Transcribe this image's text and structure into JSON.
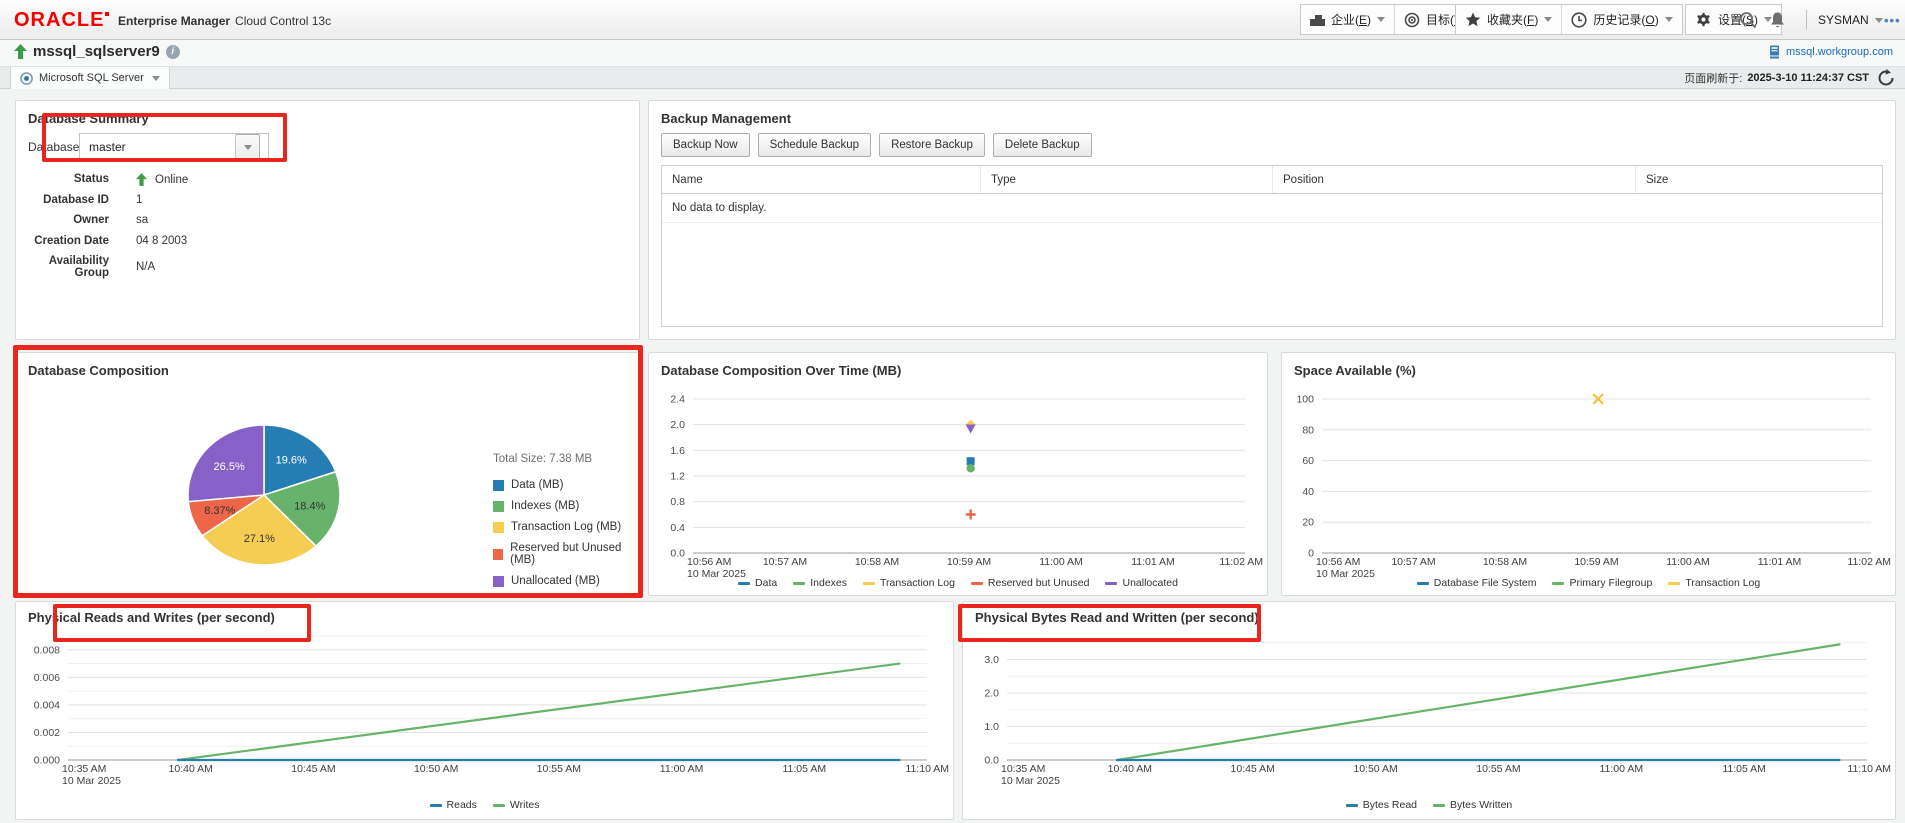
{
  "header": {
    "logo": "ORACLE",
    "product": "Enterprise Manager",
    "product_suffix": "Cloud Control 13c",
    "menus": [
      {
        "pre": "企业(",
        "accel": "E",
        "post": ")",
        "icon": "enterprise-icon"
      },
      {
        "pre": "目标(",
        "accel": "T",
        "post": ")",
        "icon": "target-icon"
      },
      {
        "pre": "收藏夹(",
        "accel": "F",
        "post": ")",
        "icon": "star-icon"
      },
      {
        "pre": "历史记录(",
        "accel": "O",
        "post": ")",
        "icon": "history-icon"
      },
      {
        "pre": "设置(",
        "accel": "S",
        "post": ")",
        "icon": "gear-icon"
      }
    ],
    "user": "SYSMAN",
    "overflow": "•••"
  },
  "target": {
    "name": "mssql_sqlserver9",
    "host": "mssql.workgroup.com",
    "type_tab": "Microsoft SQL Server",
    "refresh_label": "页面刷新于:",
    "refresh_time": "2025-3-10 11:24:37 CST"
  },
  "database_summary": {
    "title": "Database Summary",
    "field_label": "Database",
    "field_value": "master",
    "rows": [
      {
        "label": "Status",
        "value": "Online",
        "status_up": true
      },
      {
        "label": "Database ID",
        "value": "1"
      },
      {
        "label": "Owner",
        "value": "sa"
      },
      {
        "label": "Creation Date",
        "value": "04 8 2003"
      },
      {
        "label": "Availability Group",
        "value": "N/A"
      }
    ]
  },
  "backup": {
    "title": "Backup Management",
    "buttons": [
      "Backup Now",
      "Schedule Backup",
      "Restore Backup",
      "Delete Backup"
    ],
    "columns": [
      "Name",
      "Type",
      "Position",
      "Size"
    ],
    "empty_text": "No data to display."
  },
  "colors": {
    "blue": "#267db3",
    "green": "#68b36b",
    "yellow": "#f5cd53",
    "red": "#ed6647",
    "purple": "#8561c8",
    "marker_yellow": "#f0c33c",
    "annotation": "#e8261e"
  },
  "chart_data": [
    {
      "id": "composition_pie",
      "type": "pie",
      "title": "Database Composition",
      "total_label": "Total Size: 7.38 MB",
      "slices": [
        {
          "label": "Data (MB)",
          "pct": 19.6,
          "display": "19.6%",
          "color": "#267db3",
          "text": "#ffffff"
        },
        {
          "label": "Indexes (MB)",
          "pct": 18.4,
          "display": "18.4%",
          "color": "#68b36b",
          "text": "#333333"
        },
        {
          "label": "Transaction Log (MB)",
          "pct": 27.1,
          "display": "27.1%",
          "color": "#f5cd53",
          "text": "#333333"
        },
        {
          "label": "Reserved but Unused (MB)",
          "pct": 8.37,
          "display": "8.37%",
          "color": "#ed6647",
          "text": "#333333"
        },
        {
          "label": "Unallocated (MB)",
          "pct": 26.5,
          "display": "26.5%",
          "color": "#8561c8",
          "text": "#ffffff"
        }
      ]
    },
    {
      "id": "composition_time",
      "type": "scatter",
      "title": "Database Composition Over Time (MB)",
      "ymin": 0,
      "ymax": 2.4,
      "yticks": [
        {
          "v": 0,
          "label": "0.0"
        },
        {
          "v": 0.4,
          "label": "0.4"
        },
        {
          "v": 0.8,
          "label": "0.8"
        },
        {
          "v": 1.2,
          "label": "1.2"
        },
        {
          "v": 1.6,
          "label": "1.6"
        },
        {
          "v": 2.0,
          "label": "2.0"
        },
        {
          "v": 2.4,
          "label": "2.4"
        }
      ],
      "xlabels": [
        "10:56 AM",
        "10:57 AM",
        "10:58 AM",
        "10:59 AM",
        "11:00 AM",
        "11:01 AM",
        "11:02 AM"
      ],
      "xdate": "10 Mar 2025",
      "markers": [
        {
          "series": "Transaction Log",
          "shape": "diamond",
          "color": "#f5cd53",
          "x": 0.503,
          "y": 2.0
        },
        {
          "series": "Unallocated",
          "shape": "triangle-down",
          "color": "#8561c8",
          "x": 0.503,
          "y": 1.94
        },
        {
          "series": "Data",
          "shape": "square",
          "color": "#267db3",
          "x": 0.503,
          "y": 1.43
        },
        {
          "series": "Indexes",
          "shape": "circle",
          "color": "#68b36b",
          "x": 0.503,
          "y": 1.32
        },
        {
          "series": "Reserved but Unused",
          "shape": "plus",
          "color": "#ed6647",
          "x": 0.503,
          "y": 0.6
        }
      ],
      "legend": [
        {
          "label": "Data",
          "color": "#267db3"
        },
        {
          "label": "Indexes",
          "color": "#68b36b"
        },
        {
          "label": "Transaction Log",
          "color": "#f5cd53"
        },
        {
          "label": "Reserved but Unused",
          "color": "#ed6647"
        },
        {
          "label": "Unallocated",
          "color": "#8561c8"
        }
      ]
    },
    {
      "id": "space_available",
      "type": "scatter",
      "title": "Space Available (%)",
      "ymin": 0,
      "ymax": 100,
      "yticks": [
        {
          "v": 0,
          "label": "0"
        },
        {
          "v": 20,
          "label": "20"
        },
        {
          "v": 40,
          "label": "40"
        },
        {
          "v": 60,
          "label": "60"
        },
        {
          "v": 80,
          "label": "80"
        },
        {
          "v": 100,
          "label": "100"
        }
      ],
      "xlabels": [
        "10:56 AM",
        "10:57 AM",
        "10:58 AM",
        "10:59 AM",
        "11:00 AM",
        "11:01 AM",
        "11:02 AM"
      ],
      "xdate": "10 Mar 2025",
      "markers": [
        {
          "series": "Transaction Log",
          "shape": "x",
          "color": "#f0c33c",
          "x": 0.503,
          "y": 100
        }
      ],
      "legend": [
        {
          "label": "Database File System",
          "color": "#267db3"
        },
        {
          "label": "Primary Filegroup",
          "color": "#68b36b"
        },
        {
          "label": "Transaction Log",
          "color": "#f5cd53"
        }
      ]
    },
    {
      "id": "physical_rw",
      "type": "line",
      "title": "Physical Reads and Writes (per second)",
      "ymin": 0,
      "ymax": 0.009,
      "yminor": 0.001,
      "yticks": [
        {
          "v": 0,
          "label": "0.000"
        },
        {
          "v": 0.002,
          "label": "0.002"
        },
        {
          "v": 0.004,
          "label": "0.004"
        },
        {
          "v": 0.006,
          "label": "0.006"
        },
        {
          "v": 0.008,
          "label": "0.008"
        }
      ],
      "xlabels": [
        "10:35 AM",
        "10:40 AM",
        "10:45 AM",
        "10:50 AM",
        "10:55 AM",
        "11:00 AM",
        "11:05 AM",
        "11:10 AM"
      ],
      "xdate": "10 Mar 2025",
      "series": [
        {
          "name": "Writes",
          "color": "#68b36b",
          "points": [
            [
              0.128,
              0
            ],
            [
              0.968,
              0.007
            ]
          ]
        },
        {
          "name": "Reads",
          "color": "#267db3",
          "points": [
            [
              0.128,
              0
            ],
            [
              0.968,
              0
            ]
          ]
        }
      ],
      "legend": [
        {
          "label": "Reads",
          "color": "#267db3"
        },
        {
          "label": "Writes",
          "color": "#68b36b"
        }
      ]
    },
    {
      "id": "physical_bytes",
      "type": "line",
      "title": "Physical Bytes Read and Written (per second)",
      "ymin": 0,
      "ymax": 3.7,
      "yminor": 0.5,
      "yticks": [
        {
          "v": 0,
          "label": "0.0"
        },
        {
          "v": 1,
          "label": "1.0"
        },
        {
          "v": 2,
          "label": "2.0"
        },
        {
          "v": 3,
          "label": "3.0"
        }
      ],
      "xlabels": [
        "10:35 AM",
        "10:40 AM",
        "10:45 AM",
        "10:50 AM",
        "10:55 AM",
        "11:00 AM",
        "11:05 AM",
        "11:10 AM"
      ],
      "xdate": "10 Mar 2025",
      "series": [
        {
          "name": "Bytes Written",
          "color": "#68b36b",
          "points": [
            [
              0.128,
              0
            ],
            [
              0.968,
              3.45
            ]
          ]
        },
        {
          "name": "Bytes Read",
          "color": "#267db3",
          "points": [
            [
              0.128,
              0
            ],
            [
              0.968,
              0
            ]
          ]
        }
      ],
      "legend": [
        {
          "label": "Bytes Read",
          "color": "#267db3"
        },
        {
          "label": "Bytes Written",
          "color": "#68b36b"
        }
      ]
    }
  ]
}
